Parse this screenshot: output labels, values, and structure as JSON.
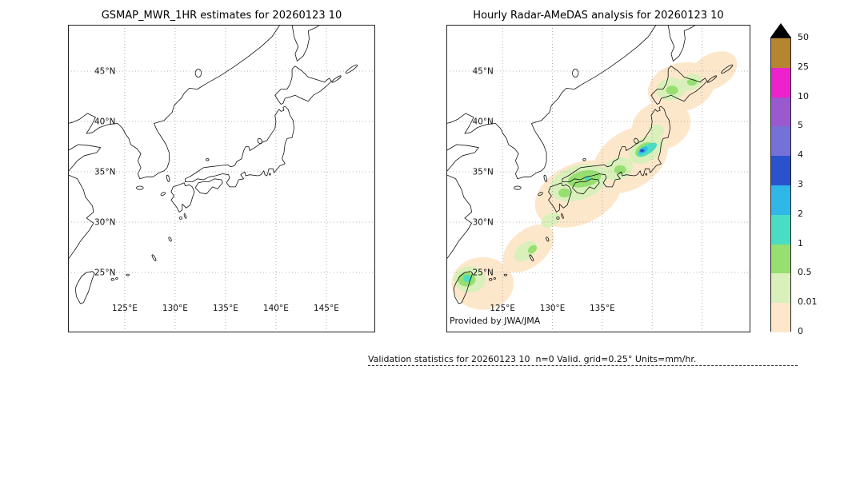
{
  "panels": {
    "left": {
      "title": "GSMAP_MWR_1HR estimates for 20260123 10",
      "lat_ticks": [
        "45°N",
        "40°N",
        "35°N",
        "30°N",
        "25°N"
      ],
      "lon_ticks": [
        "125°E",
        "130°E",
        "135°E",
        "140°E",
        "145°E"
      ]
    },
    "right": {
      "title": "Hourly Radar-AMeDAS analysis for 20260123 10",
      "lat_ticks": [
        "45°N",
        "40°N",
        "35°N",
        "30°N",
        "25°N"
      ],
      "lon_ticks": [
        "125°E",
        "130°E",
        "135°E"
      ],
      "attribution": "Provided by JWA/JMA"
    }
  },
  "colorbar": {
    "tick_labels_top_to_bottom": [
      "50",
      "25",
      "10",
      "5",
      "4",
      "3",
      "2",
      "1",
      "0.5",
      "0.01",
      "0"
    ],
    "segments_top_to_bottom": [
      {
        "range": "25-50",
        "color": "#b5862f"
      },
      {
        "range": "10-25",
        "color": "#ee22cc"
      },
      {
        "range": "5-10",
        "color": "#9b59d0"
      },
      {
        "range": "4-5",
        "color": "#7472d6"
      },
      {
        "range": "3-4",
        "color": "#2a52cc"
      },
      {
        "range": "2-3",
        "color": "#2fb7e8"
      },
      {
        "range": "1-2",
        "color": "#49ddc4"
      },
      {
        "range": "0.5-1",
        "color": "#96df70"
      },
      {
        "range": "0.01-0.5",
        "color": "#d9f0bb"
      },
      {
        "range": "0-0.01",
        "color": "#fde7cb"
      }
    ],
    "overflow_marker_color": "#000000"
  },
  "footer": {
    "text": "Validation statistics for 20260123 10  n=0 Valid. grid=0.25° Units=mm/hr."
  },
  "chart_data": {
    "type": "heatmap",
    "units": "mm/hr",
    "scale_boundaries_mm_hr": [
      0,
      0.01,
      0.5,
      1,
      2,
      3,
      4,
      5,
      10,
      25,
      50
    ],
    "overflow_marker": "black triangle above colorbar for values > 50",
    "projection": {
      "lon_range_deg_e": [
        119.4,
        149.9
      ],
      "lat_range_deg_n": [
        19.0,
        49.6
      ],
      "grid_deg": 0.25
    },
    "maps": [
      {
        "title": "GSMAP_MWR_1HR estimates for 20260123 10",
        "precipitation": "no precipitation plotted (empty field)"
      },
      {
        "title": "Hourly Radar-AMeDAS analysis for 20260123 10",
        "source": "JWA/JMA",
        "precip_regions": [
          {
            "level": "0-0.01",
            "ellipse": [
              123.0,
              23.9,
              3.1,
              2.6,
              0
            ]
          },
          {
            "level": "0-0.01",
            "ellipse": [
              127.6,
              27.4,
              3.0,
              1.8,
              -40
            ]
          },
          {
            "level": "0-0.01",
            "ellipse": [
              132.6,
              32.8,
              4.6,
              3.0,
              -25
            ]
          },
          {
            "level": "0-0.01",
            "ellipse": [
              137.8,
              36.2,
              4.2,
              2.8,
              -35
            ]
          },
          {
            "level": "0-0.01",
            "ellipse": [
              140.9,
              39.6,
              3.0,
              2.4,
              -20
            ]
          },
          {
            "level": "0-0.01",
            "ellipse": [
              142.9,
              43.4,
              3.4,
              2.4,
              -15
            ]
          },
          {
            "level": "0-0.01",
            "ellipse": [
              146.1,
              45.0,
              2.6,
              1.7,
              -30
            ]
          },
          {
            "level": "0.01-0.5",
            "ellipse": [
              121.7,
              24.3,
              1.6,
              1.3,
              0
            ]
          },
          {
            "level": "0.01-0.5",
            "ellipse": [
              127.3,
              27.1,
              1.3,
              0.8,
              -40
            ]
          },
          {
            "level": "0.01-0.5",
            "ellipse": [
              129.8,
              30.2,
              1.0,
              0.65,
              -30
            ]
          },
          {
            "level": "0.01-0.5",
            "ellipse": [
              132.6,
              33.9,
              3.0,
              1.7,
              -18
            ]
          },
          {
            "level": "0.01-0.5",
            "ellipse": [
              136.6,
              35.3,
              1.5,
              1.1,
              -20
            ]
          },
          {
            "level": "0.01-0.5",
            "ellipse": [
              139.4,
              37.2,
              1.9,
              1.2,
              -32
            ]
          },
          {
            "level": "0.01-0.5",
            "ellipse": [
              140.4,
              39.1,
              0.8,
              0.6,
              0
            ]
          },
          {
            "level": "0.01-0.5",
            "ellipse": [
              141.9,
              43.2,
              1.5,
              1.1,
              -10
            ]
          },
          {
            "level": "0.01-0.5",
            "ellipse": [
              143.9,
              43.9,
              1.1,
              0.8,
              -20
            ]
          },
          {
            "level": "0.5-1",
            "ellipse": [
              121.4,
              24.3,
              0.9,
              0.7,
              0
            ]
          },
          {
            "level": "0.5-1",
            "ellipse": [
              128.0,
              27.3,
              0.5,
              0.35,
              -40
            ]
          },
          {
            "level": "0.5-1",
            "ellipse": [
              131.2,
              32.9,
              0.6,
              0.45,
              0
            ]
          },
          {
            "level": "0.5-1",
            "ellipse": [
              133.2,
              34.3,
              1.7,
              0.8,
              -12
            ]
          },
          {
            "level": "0.5-1",
            "ellipse": [
              136.8,
              35.2,
              0.6,
              0.45,
              0
            ]
          },
          {
            "level": "0.5-1",
            "ellipse": [
              139.2,
              37.2,
              1.0,
              0.6,
              -32
            ]
          },
          {
            "level": "0.5-1",
            "ellipse": [
              142.0,
              43.1,
              0.6,
              0.45,
              0
            ]
          },
          {
            "level": "0.5-1",
            "ellipse": [
              144.0,
              43.9,
              0.5,
              0.35,
              0
            ]
          },
          {
            "level": "1-2",
            "ellipse": [
              121.5,
              24.4,
              0.45,
              0.33,
              0
            ]
          },
          {
            "level": "1-2",
            "ellipse": [
              133.5,
              34.35,
              0.3,
              0.2,
              0
            ]
          },
          {
            "level": "1-2",
            "ellipse": [
              139.5,
              37.2,
              1.1,
              0.45,
              -32
            ]
          },
          {
            "level": "2-3",
            "ellipse": [
              139.1,
              37.15,
              0.5,
              0.28,
              -32
            ]
          },
          {
            "level": "3-4",
            "ellipse": [
              139.0,
              37.1,
              0.22,
              0.15,
              0
            ]
          }
        ]
      }
    ],
    "validation": {
      "n": 0,
      "grid": "0.25°",
      "units": "mm/hr"
    }
  }
}
